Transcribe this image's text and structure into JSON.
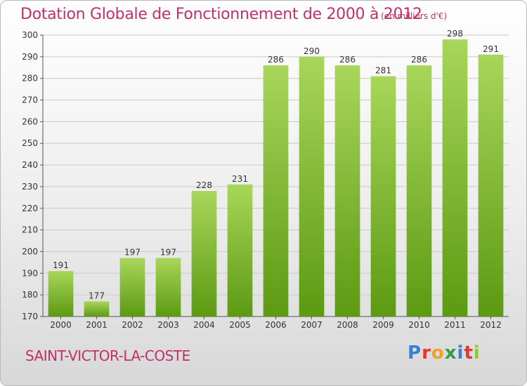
{
  "title": "Dotation Globale de Fonctionnement de 2000 à 2012",
  "subtitle": "(en milliers d'€)",
  "commune": "SAINT-VICTOR-LA-COSTE",
  "logo": {
    "text": "Proxiti",
    "colors": [
      "#3a7fd0",
      "#e8332a",
      "#f2a023",
      "#2f9e44",
      "#3a7fd0",
      "#e8332a",
      "#8dc63f"
    ]
  },
  "colors": {
    "bar_top": "#a8d65a",
    "bar_bottom": "#5c9a12",
    "title": "#c0306a",
    "grid": "#c9c9c9"
  },
  "chart_data": {
    "type": "bar",
    "categories": [
      "2000",
      "2001",
      "2002",
      "2003",
      "2004",
      "2005",
      "2006",
      "2007",
      "2008",
      "2009",
      "2010",
      "2011",
      "2012"
    ],
    "values": [
      191,
      177,
      197,
      197,
      228,
      231,
      286,
      290,
      286,
      281,
      286,
      298,
      291
    ],
    "ylim": [
      170,
      300
    ],
    "yticks": [
      170,
      180,
      190,
      200,
      210,
      220,
      230,
      240,
      250,
      260,
      270,
      280,
      290,
      300
    ],
    "grid": true
  }
}
